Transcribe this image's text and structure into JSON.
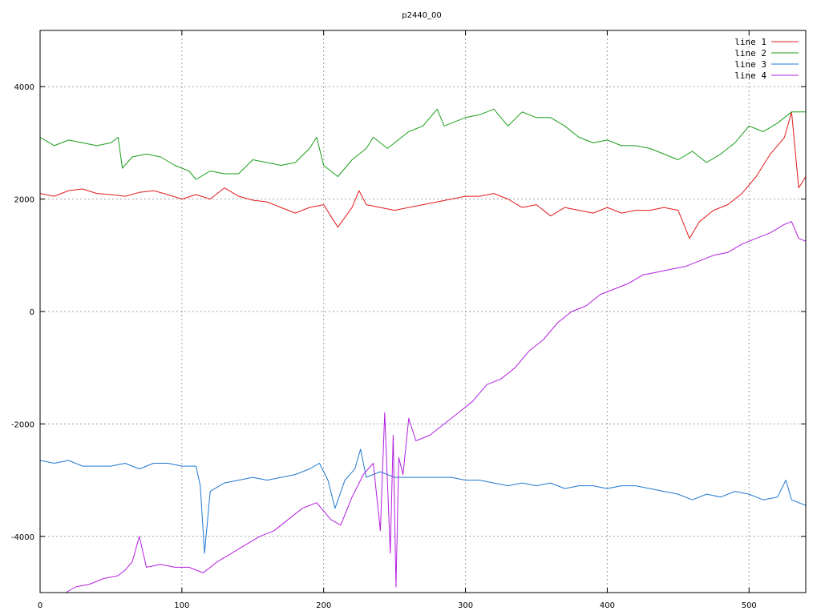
{
  "chart_data": {
    "type": "line",
    "title": "p2440_00",
    "xlabel": "",
    "ylabel": "",
    "xlim": [
      0,
      540
    ],
    "ylim": [
      -5000,
      5000
    ],
    "x_ticks": [
      0,
      100,
      200,
      300,
      400,
      500
    ],
    "y_ticks": [
      -4000,
      -2000,
      0,
      2000,
      4000
    ],
    "x_tick_labels": [
      "0",
      "100",
      "200",
      "300",
      "400",
      "500"
    ],
    "y_tick_labels": [
      "-4000",
      "-2000",
      "0",
      "2000",
      "4000"
    ],
    "grid": true,
    "legend_position": "top-right",
    "series": [
      {
        "name": "line 1",
        "color": "#e41a1c",
        "points": [
          [
            0,
            2100
          ],
          [
            10,
            2050
          ],
          [
            20,
            2150
          ],
          [
            30,
            2180
          ],
          [
            40,
            2100
          ],
          [
            50,
            2080
          ],
          [
            60,
            2050
          ],
          [
            70,
            2120
          ],
          [
            80,
            2150
          ],
          [
            90,
            2080
          ],
          [
            100,
            2000
          ],
          [
            110,
            2080
          ],
          [
            120,
            2000
          ],
          [
            130,
            2200
          ],
          [
            140,
            2050
          ],
          [
            150,
            1980
          ],
          [
            160,
            1950
          ],
          [
            170,
            1850
          ],
          [
            180,
            1750
          ],
          [
            190,
            1850
          ],
          [
            200,
            1900
          ],
          [
            205,
            1700
          ],
          [
            210,
            1500
          ],
          [
            220,
            1850
          ],
          [
            225,
            2150
          ],
          [
            230,
            1900
          ],
          [
            240,
            1850
          ],
          [
            250,
            1800
          ],
          [
            260,
            1850
          ],
          [
            270,
            1900
          ],
          [
            280,
            1950
          ],
          [
            290,
            2000
          ],
          [
            300,
            2050
          ],
          [
            310,
            2050
          ],
          [
            320,
            2100
          ],
          [
            330,
            2000
          ],
          [
            340,
            1850
          ],
          [
            350,
            1900
          ],
          [
            360,
            1700
          ],
          [
            370,
            1850
          ],
          [
            380,
            1800
          ],
          [
            390,
            1750
          ],
          [
            400,
            1850
          ],
          [
            410,
            1750
          ],
          [
            420,
            1800
          ],
          [
            430,
            1800
          ],
          [
            440,
            1850
          ],
          [
            450,
            1800
          ],
          [
            458,
            1300
          ],
          [
            465,
            1600
          ],
          [
            475,
            1800
          ],
          [
            485,
            1900
          ],
          [
            495,
            2100
          ],
          [
            505,
            2400
          ],
          [
            515,
            2800
          ],
          [
            525,
            3100
          ],
          [
            530,
            3550
          ],
          [
            535,
            2200
          ],
          [
            540,
            2400
          ]
        ]
      },
      {
        "name": "line 2",
        "color": "#1a9e1a",
        "points": [
          [
            0,
            3100
          ],
          [
            10,
            2950
          ],
          [
            20,
            3050
          ],
          [
            30,
            3000
          ],
          [
            40,
            2950
          ],
          [
            50,
            3000
          ],
          [
            55,
            3100
          ],
          [
            58,
            2550
          ],
          [
            65,
            2750
          ],
          [
            75,
            2800
          ],
          [
            85,
            2750
          ],
          [
            95,
            2600
          ],
          [
            105,
            2500
          ],
          [
            110,
            2350
          ],
          [
            120,
            2500
          ],
          [
            130,
            2450
          ],
          [
            140,
            2450
          ],
          [
            150,
            2700
          ],
          [
            160,
            2650
          ],
          [
            170,
            2600
          ],
          [
            180,
            2650
          ],
          [
            190,
            2900
          ],
          [
            195,
            3100
          ],
          [
            200,
            2600
          ],
          [
            210,
            2400
          ],
          [
            220,
            2700
          ],
          [
            230,
            2900
          ],
          [
            235,
            3100
          ],
          [
            245,
            2900
          ],
          [
            260,
            3200
          ],
          [
            270,
            3300
          ],
          [
            280,
            3600
          ],
          [
            285,
            3300
          ],
          [
            300,
            3450
          ],
          [
            310,
            3500
          ],
          [
            320,
            3600
          ],
          [
            330,
            3300
          ],
          [
            340,
            3550
          ],
          [
            350,
            3450
          ],
          [
            360,
            3450
          ],
          [
            370,
            3300
          ],
          [
            380,
            3100
          ],
          [
            390,
            3000
          ],
          [
            400,
            3050
          ],
          [
            410,
            2950
          ],
          [
            420,
            2950
          ],
          [
            430,
            2900
          ],
          [
            440,
            2800
          ],
          [
            450,
            2700
          ],
          [
            460,
            2850
          ],
          [
            470,
            2650
          ],
          [
            480,
            2800
          ],
          [
            490,
            3000
          ],
          [
            500,
            3300
          ],
          [
            510,
            3200
          ],
          [
            520,
            3350
          ],
          [
            530,
            3550
          ],
          [
            540,
            3550
          ]
        ]
      },
      {
        "name": "line 3",
        "color": "#1f78d1",
        "points": [
          [
            0,
            -2650
          ],
          [
            10,
            -2700
          ],
          [
            20,
            -2650
          ],
          [
            30,
            -2750
          ],
          [
            40,
            -2750
          ],
          [
            50,
            -2750
          ],
          [
            60,
            -2700
          ],
          [
            70,
            -2800
          ],
          [
            80,
            -2700
          ],
          [
            90,
            -2700
          ],
          [
            100,
            -2750
          ],
          [
            110,
            -2750
          ],
          [
            113,
            -3100
          ],
          [
            116,
            -4300
          ],
          [
            120,
            -3200
          ],
          [
            130,
            -3050
          ],
          [
            140,
            -3000
          ],
          [
            150,
            -2950
          ],
          [
            160,
            -3000
          ],
          [
            170,
            -2950
          ],
          [
            180,
            -2900
          ],
          [
            190,
            -2800
          ],
          [
            197,
            -2700
          ],
          [
            203,
            -3000
          ],
          [
            208,
            -3500
          ],
          [
            215,
            -3000
          ],
          [
            222,
            -2800
          ],
          [
            226,
            -2450
          ],
          [
            230,
            -2950
          ],
          [
            240,
            -2850
          ],
          [
            250,
            -2950
          ],
          [
            260,
            -2950
          ],
          [
            270,
            -2950
          ],
          [
            280,
            -2950
          ],
          [
            290,
            -2950
          ],
          [
            300,
            -3000
          ],
          [
            310,
            -3000
          ],
          [
            320,
            -3050
          ],
          [
            330,
            -3100
          ],
          [
            340,
            -3050
          ],
          [
            350,
            -3100
          ],
          [
            360,
            -3050
          ],
          [
            370,
            -3150
          ],
          [
            380,
            -3100
          ],
          [
            390,
            -3100
          ],
          [
            400,
            -3150
          ],
          [
            410,
            -3100
          ],
          [
            420,
            -3100
          ],
          [
            430,
            -3150
          ],
          [
            440,
            -3200
          ],
          [
            450,
            -3250
          ],
          [
            460,
            -3350
          ],
          [
            470,
            -3250
          ],
          [
            480,
            -3300
          ],
          [
            490,
            -3200
          ],
          [
            500,
            -3250
          ],
          [
            510,
            -3350
          ],
          [
            520,
            -3300
          ],
          [
            526,
            -3000
          ],
          [
            530,
            -3350
          ],
          [
            540,
            -3450
          ]
        ]
      },
      {
        "name": "line 4",
        "color": "#b41ee0",
        "points": [
          [
            18,
            -5000
          ],
          [
            25,
            -4900
          ],
          [
            35,
            -4850
          ],
          [
            45,
            -4750
          ],
          [
            55,
            -4700
          ],
          [
            60,
            -4600
          ],
          [
            65,
            -4450
          ],
          [
            70,
            -4000
          ],
          [
            75,
            -4550
          ],
          [
            85,
            -4500
          ],
          [
            95,
            -4550
          ],
          [
            105,
            -4550
          ],
          [
            115,
            -4650
          ],
          [
            125,
            -4450
          ],
          [
            135,
            -4300
          ],
          [
            145,
            -4150
          ],
          [
            155,
            -4000
          ],
          [
            165,
            -3900
          ],
          [
            175,
            -3700
          ],
          [
            185,
            -3500
          ],
          [
            195,
            -3400
          ],
          [
            205,
            -3700
          ],
          [
            212,
            -3800
          ],
          [
            220,
            -3300
          ],
          [
            228,
            -2900
          ],
          [
            235,
            -2700
          ],
          [
            240,
            -3900
          ],
          [
            243,
            -1800
          ],
          [
            247,
            -4300
          ],
          [
            249,
            -2200
          ],
          [
            251,
            -4900
          ],
          [
            253,
            -2600
          ],
          [
            256,
            -2900
          ],
          [
            260,
            -1900
          ],
          [
            265,
            -2300
          ],
          [
            275,
            -2200
          ],
          [
            285,
            -2000
          ],
          [
            295,
            -1800
          ],
          [
            305,
            -1600
          ],
          [
            315,
            -1300
          ],
          [
            325,
            -1200
          ],
          [
            335,
            -1000
          ],
          [
            345,
            -700
          ],
          [
            355,
            -500
          ],
          [
            365,
            -200
          ],
          [
            375,
            0
          ],
          [
            385,
            100
          ],
          [
            395,
            300
          ],
          [
            405,
            400
          ],
          [
            415,
            500
          ],
          [
            425,
            650
          ],
          [
            435,
            700
          ],
          [
            445,
            750
          ],
          [
            455,
            800
          ],
          [
            465,
            900
          ],
          [
            475,
            1000
          ],
          [
            485,
            1050
          ],
          [
            495,
            1200
          ],
          [
            505,
            1300
          ],
          [
            515,
            1400
          ],
          [
            525,
            1550
          ],
          [
            530,
            1600
          ],
          [
            535,
            1300
          ],
          [
            540,
            1250
          ]
        ]
      }
    ]
  }
}
